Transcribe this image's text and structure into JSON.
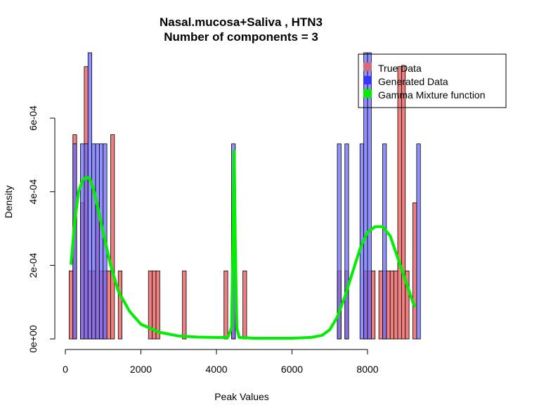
{
  "chart_data": {
    "type": "histogram",
    "title": "Nasal.mucosa+Saliva , HTN3",
    "subtitle": "Number of components =  3",
    "xlabel": "Peak Values",
    "ylabel": "Density",
    "xlim": [
      0,
      9400
    ],
    "ylim": [
      0,
      0.00078
    ],
    "x_ticks": [
      0,
      2000,
      4000,
      6000,
      8000
    ],
    "x_tick_labels": [
      "0",
      "2000",
      "4000",
      "6000",
      "8000"
    ],
    "y_ticks": [
      0,
      0.0002,
      0.0004,
      0.0006
    ],
    "y_tick_labels": [
      "0e+00",
      "2e-04",
      "4e-04",
      "6e-04"
    ],
    "bin_width": 100,
    "grid": false,
    "legend_position": "top-right",
    "colors": {
      "true_data": "#f08080",
      "generated_data": "#6b6bff",
      "gamma_mixture": "#00ee00"
    },
    "series": [
      {
        "name": "True Data",
        "kind": "histogram",
        "bins": [
          {
            "x0": 100,
            "y": 0.000185
          },
          {
            "x0": 200,
            "y": 0.000555
          },
          {
            "x0": 400,
            "y": 0.00037
          },
          {
            "x0": 500,
            "y": 0.00074
          },
          {
            "x0": 600,
            "y": 0.000185
          },
          {
            "x0": 700,
            "y": 0.000185
          },
          {
            "x0": 800,
            "y": 0.00037
          },
          {
            "x0": 900,
            "y": 0.000185
          },
          {
            "x0": 1000,
            "y": 0.000185
          },
          {
            "x0": 1100,
            "y": 0.000185
          },
          {
            "x0": 1200,
            "y": 0.000555
          },
          {
            "x0": 1400,
            "y": 0.000185
          },
          {
            "x0": 2200,
            "y": 0.000185
          },
          {
            "x0": 2300,
            "y": 0.000185
          },
          {
            "x0": 2400,
            "y": 0.000185
          },
          {
            "x0": 3100,
            "y": 0.000185
          },
          {
            "x0": 4200,
            "y": 0.000185
          },
          {
            "x0": 4400,
            "y": 0.000185
          },
          {
            "x0": 4700,
            "y": 0.000185
          },
          {
            "x0": 7200,
            "y": 0.000185
          },
          {
            "x0": 7400,
            "y": 0.000185
          },
          {
            "x0": 7900,
            "y": 0.000185
          },
          {
            "x0": 8000,
            "y": 0.000185
          },
          {
            "x0": 8100,
            "y": 0.000185
          },
          {
            "x0": 8300,
            "y": 0.000185
          },
          {
            "x0": 8400,
            "y": 0.000185
          },
          {
            "x0": 8500,
            "y": 0.000185
          },
          {
            "x0": 8600,
            "y": 0.000185
          },
          {
            "x0": 8700,
            "y": 0.000185
          },
          {
            "x0": 8800,
            "y": 0.00074
          },
          {
            "x0": 8900,
            "y": 0.00074
          },
          {
            "x0": 9000,
            "y": 0.000185
          },
          {
            "x0": 9200,
            "y": 0.00037
          }
        ]
      },
      {
        "name": "Generated Data",
        "kind": "histogram",
        "bins": [
          {
            "x0": 200,
            "y": 0.00053
          },
          {
            "x0": 400,
            "y": 0.00053
          },
          {
            "x0": 500,
            "y": 0.00053
          },
          {
            "x0": 600,
            "y": 0.00078
          },
          {
            "x0": 700,
            "y": 0.00053
          },
          {
            "x0": 800,
            "y": 0.00053
          },
          {
            "x0": 900,
            "y": 0.00053
          },
          {
            "x0": 1000,
            "y": 0.00053
          },
          {
            "x0": 4400,
            "y": 0.00053
          },
          {
            "x0": 7200,
            "y": 0.00053
          },
          {
            "x0": 7400,
            "y": 0.00053
          },
          {
            "x0": 7800,
            "y": 0.00053
          },
          {
            "x0": 7900,
            "y": 0.00078
          },
          {
            "x0": 8000,
            "y": 0.00078
          },
          {
            "x0": 8400,
            "y": 0.00053
          },
          {
            "x0": 9300,
            "y": 0.00053
          }
        ]
      },
      {
        "name": "Gamma Mixture function",
        "kind": "line",
        "points": [
          [
            150,
            0.000205
          ],
          [
            250,
            0.00032
          ],
          [
            350,
            0.0004
          ],
          [
            450,
            0.00043
          ],
          [
            550,
            0.00044
          ],
          [
            650,
            0.000435
          ],
          [
            750,
            0.000405
          ],
          [
            850,
            0.00036
          ],
          [
            1000,
            0.00029
          ],
          [
            1200,
            0.0002
          ],
          [
            1400,
            0.00013
          ],
          [
            1700,
            7.5e-05
          ],
          [
            2000,
            4e-05
          ],
          [
            2500,
            1.8e-05
          ],
          [
            3000,
            8e-06
          ],
          [
            3500,
            5e-06
          ],
          [
            4000,
            4e-06
          ],
          [
            4300,
            4e-06
          ],
          [
            4400,
            3e-05
          ],
          [
            4440,
            0.00025
          ],
          [
            4470,
            0.00051
          ],
          [
            4500,
            0.00025
          ],
          [
            4540,
            3e-05
          ],
          [
            4600,
            4e-06
          ],
          [
            5000,
            2e-06
          ],
          [
            6000,
            2e-06
          ],
          [
            6500,
            4e-06
          ],
          [
            6800,
            1e-05
          ],
          [
            7000,
            2.5e-05
          ],
          [
            7200,
            6e-05
          ],
          [
            7400,
            0.000115
          ],
          [
            7600,
            0.00018
          ],
          [
            7800,
            0.000245
          ],
          [
            8000,
            0.00029
          ],
          [
            8200,
            0.000305
          ],
          [
            8400,
            0.000305
          ],
          [
            8600,
            0.00028
          ],
          [
            8800,
            0.00022
          ],
          [
            9000,
            0.00016
          ],
          [
            9200,
            0.0001
          ],
          [
            9250,
            9e-05
          ]
        ]
      }
    ]
  }
}
